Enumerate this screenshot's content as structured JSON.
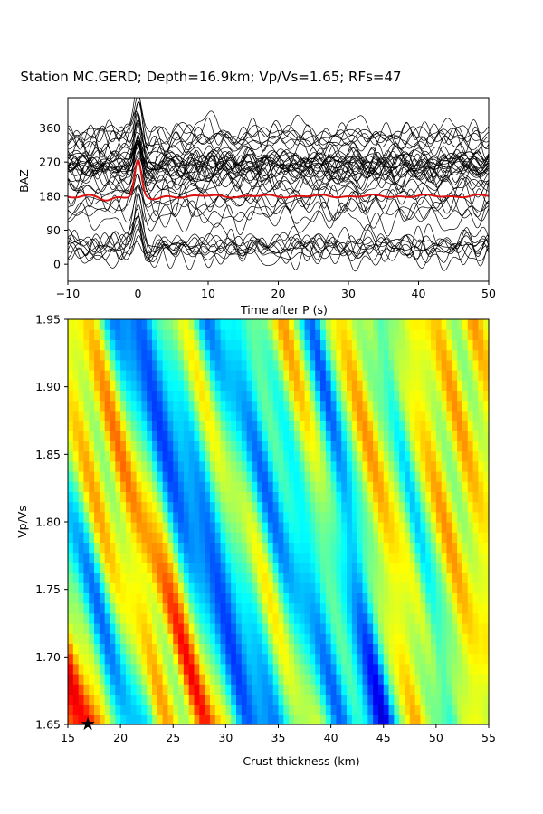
{
  "figure_title": "Station MC.GERD; Depth=16.9km; Vp/Vs=1.65; RFs=47",
  "colors": {
    "traces": "#000000",
    "stack": "#dd1111",
    "star": "#000000",
    "colormap": "jet"
  },
  "chart_data": [
    {
      "type": "line",
      "xlabel": "Time after P (s)",
      "ylabel": "BAZ",
      "xlim": [
        -10,
        50
      ],
      "ylim": [
        -45,
        440
      ],
      "x_ticks": [
        "−10",
        "0",
        "10",
        "20",
        "30",
        "40",
        "50"
      ],
      "x_tick_values": [
        -10,
        0,
        10,
        20,
        30,
        40,
        50
      ],
      "y_ticks": [
        "0",
        "90",
        "180",
        "270",
        "360"
      ],
      "y_tick_values": [
        0,
        90,
        180,
        270,
        360
      ],
      "grid": false,
      "trace_count": 47,
      "trace_baz_offsets": [
        40,
        48,
        52,
        58,
        63,
        20,
        30,
        35,
        45,
        55,
        120,
        135,
        150,
        160,
        170,
        185,
        195,
        205,
        215,
        225,
        232,
        240,
        245,
        248,
        252,
        255,
        258,
        260,
        262,
        265,
        268,
        270,
        272,
        275,
        278,
        282,
        285,
        290,
        262,
        250,
        322,
        328,
        332,
        336,
        340,
        345,
        352
      ],
      "trace_peak_time": 0,
      "stack": {
        "baz_offset": 180,
        "peak_amplitude": 95,
        "peak_time": 0
      }
    },
    {
      "type": "heatmap",
      "xlabel": "Crust thickness (km)",
      "ylabel": "Vp/Vs",
      "xlim": [
        15,
        55
      ],
      "ylim": [
        1.65,
        1.95
      ],
      "x_ticks": [
        "15",
        "20",
        "25",
        "30",
        "35",
        "40",
        "45",
        "50",
        "55"
      ],
      "x_tick_values": [
        15,
        20,
        25,
        30,
        35,
        40,
        45,
        50,
        55
      ],
      "y_ticks": [
        "1.65",
        "1.70",
        "1.75",
        "1.80",
        "1.85",
        "1.90",
        "1.95"
      ],
      "y_tick_values": [
        1.65,
        1.7,
        1.75,
        1.8,
        1.85,
        1.9,
        1.95
      ],
      "colormap": "jet",
      "grid": false,
      "best_fit": {
        "thickness_km": 16.9,
        "vpvs": 1.65
      }
    }
  ]
}
